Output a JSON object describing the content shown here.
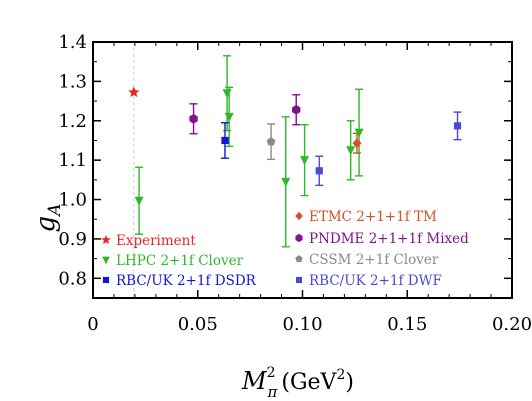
{
  "chart_data": {
    "type": "scatter",
    "title": "",
    "xlabel": {
      "base": "M",
      "sub": "π",
      "sup": "2",
      "unit_open": "(GeV",
      "unit_sup": "2",
      "unit_close": ")"
    },
    "ylabel": {
      "base": "g",
      "sub": "A"
    },
    "xlim": [
      0,
      0.2
    ],
    "ylim": [
      0.75,
      1.4
    ],
    "x_ticks": [
      {
        "value": 0,
        "label": "0"
      },
      {
        "value": 0.05,
        "label": "0.05"
      },
      {
        "value": 0.1,
        "label": "0.10"
      },
      {
        "value": 0.15,
        "label": "0.15"
      },
      {
        "value": 0.2,
        "label": "0.20"
      }
    ],
    "y_ticks": [
      {
        "value": 0.8,
        "label": "0.8"
      },
      {
        "value": 0.9,
        "label": "0.9"
      },
      {
        "value": 1.0,
        "label": "1.0"
      },
      {
        "value": 1.1,
        "label": "1.1"
      },
      {
        "value": 1.2,
        "label": "1.2"
      },
      {
        "value": 1.3,
        "label": "1.3"
      },
      {
        "value": 1.4,
        "label": "1.4"
      }
    ],
    "reference_line_x": 0.0195,
    "series": [
      {
        "name": "Experiment",
        "color": "#e8262a",
        "marker": "star",
        "points": [
          {
            "x": 0.0195,
            "y": 1.2723
          }
        ]
      },
      {
        "name": "LHPC 2+1f Clover",
        "color": "#2eb82a",
        "marker": "triangle-down",
        "points": [
          {
            "x": 0.022,
            "y": 0.997,
            "err": 0.085
          },
          {
            "x": 0.064,
            "y": 1.27,
            "err": 0.095
          },
          {
            "x": 0.065,
            "y": 1.21,
            "err": 0.075
          },
          {
            "x": 0.092,
            "y": 1.045,
            "err": 0.165
          },
          {
            "x": 0.101,
            "y": 1.1,
            "err": 0.09
          },
          {
            "x": 0.123,
            "y": 1.125,
            "err": 0.075
          },
          {
            "x": 0.127,
            "y": 1.17,
            "err": 0.11
          }
        ]
      },
      {
        "name": "RBC/UK 2+1f DSDR",
        "color": "#1414d4",
        "marker": "square",
        "points": [
          {
            "x": 0.063,
            "y": 1.15,
            "err": 0.045
          }
        ]
      },
      {
        "name": "ETMC 2+1+1f TM",
        "color": "#d2512a",
        "marker": "diamond",
        "points": [
          {
            "x": 0.126,
            "y": 1.143,
            "err": 0.025
          }
        ]
      },
      {
        "name": "PNDME 2+1+1f Mixed",
        "color": "#82128f",
        "marker": "hexagon",
        "points": [
          {
            "x": 0.048,
            "y": 1.205,
            "err": 0.038
          },
          {
            "x": 0.097,
            "y": 1.228,
            "err": 0.038
          }
        ]
      },
      {
        "name": "CSSM 2+1f Clover",
        "color": "#8a8a8a",
        "marker": "pentagon",
        "points": [
          {
            "x": 0.085,
            "y": 1.147,
            "err": 0.045
          }
        ]
      },
      {
        "name": "RBC/UK 2+1f DWF",
        "color": "#4a4ad0",
        "marker": "square",
        "points": [
          {
            "x": 0.108,
            "y": 1.073,
            "err": 0.037
          },
          {
            "x": 0.174,
            "y": 1.187,
            "err": 0.035
          }
        ]
      }
    ],
    "legend_placement": "inside-bottom"
  }
}
